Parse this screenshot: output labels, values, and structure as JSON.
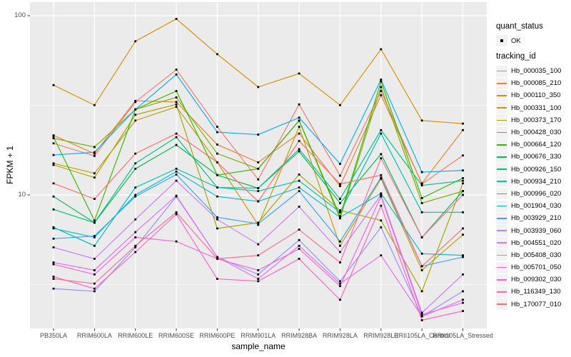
{
  "figure": {
    "background": "#FFFFFF",
    "panel_background": "#EBEBEB",
    "grid_color": "#FFFFFF",
    "tick_color": "#333333",
    "tick_text_color": "#4D4D4D",
    "point_color": "#000000",
    "legend_key_background": "#F2F2F2"
  },
  "chart_data": {
    "type": "line",
    "title": "",
    "xlabel": "sample_name",
    "ylabel": "FPKM + 1",
    "y_scale": "log10",
    "y_axis_ticks": [
      100,
      10
    ],
    "y_minor_gridlines": [
      31.6,
      3.16
    ],
    "ylim": [
      1.8,
      115
    ],
    "grid": true,
    "legend_position": "right",
    "point_shape": "filled-square-black",
    "categories": [
      "PB350LA",
      "RRIM600LA",
      "RRIM600LE",
      "RRIM600SE",
      "RRIM600PE",
      "RRIM901LA",
      "RRIM928BA",
      "RRIM928LA",
      "RRIM928LE",
      "RRII105LA_Control",
      "RRII105LA_Stressed"
    ],
    "legend": {
      "quant_status_title": "quant_status",
      "quant_status_items": [
        {
          "label": "OK",
          "shape": "point",
          "color": "#000000"
        }
      ],
      "tracking_title": "tracking_id"
    },
    "series": [
      {
        "name": "Hb_000035_100",
        "color": "#F8766D",
        "values": [
          19.4,
          16.5,
          33,
          50,
          24,
          12.2,
          32,
          12.8,
          38,
          11.5,
          16.6
        ]
      },
      {
        "name": "Hb_000085_210",
        "color": "#EA8331",
        "values": [
          21.5,
          17,
          33.5,
          33,
          19.1,
          15.2,
          22,
          11.2,
          36,
          11.6,
          23
        ]
      },
      {
        "name": "Hb_000110_350",
        "color": "#D89000",
        "values": [
          41,
          31.7,
          72,
          96,
          61,
          40,
          47.6,
          31.7,
          65,
          26,
          25
        ]
      },
      {
        "name": "Hb_000331_100",
        "color": "#C09B00",
        "values": [
          15,
          13.2,
          26,
          31,
          15.2,
          6.8,
          24,
          5.2,
          12.3,
          3.8,
          6
        ]
      },
      {
        "name": "Hb_000373_170",
        "color": "#A3A500",
        "values": [
          14.7,
          12.5,
          28,
          32,
          6.5,
          7,
          13,
          8.2,
          7.2,
          2.9,
          11.6
        ]
      },
      {
        "name": "Hb_000428_030",
        "color": "#7CAE00",
        "values": [
          20.7,
          18.5,
          30,
          35,
          17,
          14,
          26,
          7.4,
          40,
          9,
          10.5
        ]
      },
      {
        "name": "Hb_000664_120",
        "color": "#39B600",
        "values": [
          21,
          7.2,
          30,
          38,
          12.9,
          14,
          26,
          7.6,
          43,
          9.6,
          12.4
        ]
      },
      {
        "name": "Hb_000676_330",
        "color": "#00BB4E",
        "values": [
          9.8,
          7,
          14,
          19,
          12.9,
          10.9,
          17.5,
          9,
          16.9,
          5.8,
          10.5
        ]
      },
      {
        "name": "Hb_000926_150",
        "color": "#00C087",
        "values": [
          8.3,
          7,
          15,
          21,
          11,
          10.9,
          18,
          9.5,
          23,
          11.3,
          12
        ]
      },
      {
        "name": "Hb_000934_210",
        "color": "#00C0AF",
        "values": [
          6.6,
          5.2,
          11,
          14,
          11,
          10.5,
          12,
          8,
          22,
          8,
          8
        ]
      },
      {
        "name": "Hb_000996_020",
        "color": "#00BCD8",
        "values": [
          6.5,
          5.8,
          10,
          13.5,
          9.8,
          9.2,
          11,
          7.5,
          10.2,
          4.7,
          4.6
        ]
      },
      {
        "name": "Hb_001904_030",
        "color": "#00B0F6",
        "values": [
          16.7,
          17.3,
          30,
          47,
          22.4,
          21.7,
          27,
          14.9,
          44,
          13.4,
          13.7
        ]
      },
      {
        "name": "Hb_003929_210",
        "color": "#35A2FF",
        "values": [
          5.7,
          5.9,
          9.8,
          13,
          7.5,
          6.9,
          10.5,
          5.5,
          12.5,
          4,
          4.5
        ]
      },
      {
        "name": "Hb_003939_060",
        "color": "#9590FF",
        "values": [
          3,
          2.9,
          5.1,
          9.8,
          4.5,
          3.6,
          5.6,
          3.3,
          6.6,
          2.1,
          2.9
        ]
      },
      {
        "name": "Hb_004551_020",
        "color": "#C77CFF",
        "values": [
          5.1,
          4.4,
          7.3,
          12,
          7.3,
          5.3,
          8.6,
          4.8,
          10,
          2.2,
          3.6
        ]
      },
      {
        "name": "Hb_005408_030",
        "color": "#E76BF3",
        "values": [
          4.2,
          3.8,
          6.2,
          9.9,
          4.5,
          3.4,
          5.2,
          3.2,
          4.6,
          2.1,
          2.6
        ]
      },
      {
        "name": "Hb_005701_050",
        "color": "#FA62DB",
        "values": [
          4.1,
          3.6,
          5.8,
          5.5,
          4.4,
          3.8,
          5,
          3.1,
          9.8,
          2.15,
          2.5
        ]
      },
      {
        "name": "Hb_009302_030",
        "color": "#FF61C3",
        "values": [
          3.5,
          3,
          4.8,
          7.8,
          3.4,
          3.3,
          4.4,
          2.6,
          8.7,
          2,
          2.25
        ]
      },
      {
        "name": "Hb_116349_130",
        "color": "#FF6A98",
        "values": [
          3.4,
          3.2,
          5.2,
          8,
          4.4,
          4.6,
          6.4,
          4.2,
          16,
          5.8,
          10
        ]
      },
      {
        "name": "Hb_170077_010",
        "color": "#FF6C67",
        "values": [
          11.6,
          9.5,
          17,
          22,
          15.2,
          9.2,
          20,
          11.5,
          12.9,
          4,
          6.5
        ]
      }
    ]
  }
}
